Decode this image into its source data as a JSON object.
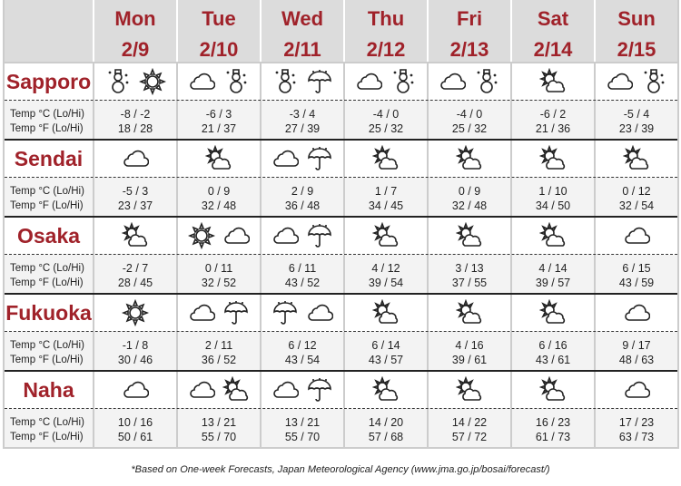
{
  "days": [
    {
      "name": "Mon",
      "date": "2/9"
    },
    {
      "name": "Tue",
      "date": "2/10"
    },
    {
      "name": "Wed",
      "date": "2/11"
    },
    {
      "name": "Thu",
      "date": "2/12"
    },
    {
      "name": "Fri",
      "date": "2/13"
    },
    {
      "name": "Sat",
      "date": "2/14"
    },
    {
      "name": "Sun",
      "date": "2/15"
    }
  ],
  "labels": {
    "c": "Temp °C (Lo/Hi)",
    "f": "Temp °F (Lo/Hi)"
  },
  "accent": "#a0222a",
  "cities": [
    {
      "name": "Sapporo",
      "icons": [
        [
          "snowman",
          "sun"
        ],
        [
          "cloud",
          "snowman"
        ],
        [
          "snowman",
          "umbrella"
        ],
        [
          "cloud",
          "snowman"
        ],
        [
          "cloud",
          "snowman"
        ],
        [
          "sun-cloud"
        ],
        [
          "cloud",
          "snowman"
        ]
      ],
      "c": [
        "-8 / -2",
        "-6 / 3",
        "-3 / 4",
        "-4 / 0",
        "-4 / 0",
        "-6 / 2",
        "-5 / 4"
      ],
      "f": [
        "18 / 28",
        "21 / 37",
        "27 / 39",
        "25 / 32",
        "25 / 32",
        "21 / 36",
        "23 / 39"
      ]
    },
    {
      "name": "Sendai",
      "icons": [
        [
          "cloud"
        ],
        [
          "sun-cloud"
        ],
        [
          "cloud",
          "umbrella"
        ],
        [
          "sun-cloud"
        ],
        [
          "sun-cloud"
        ],
        [
          "sun-cloud"
        ],
        [
          "sun-cloud"
        ]
      ],
      "c": [
        "-5 / 3",
        "0 / 9",
        "2 / 9",
        "1 / 7",
        "0 / 9",
        "1 / 10",
        "0 / 12"
      ],
      "f": [
        "23 / 37",
        "32 / 48",
        "36 / 48",
        "34 / 45",
        "32 / 48",
        "34 / 50",
        "32 / 54"
      ]
    },
    {
      "name": "Osaka",
      "icons": [
        [
          "sun-cloud"
        ],
        [
          "sun",
          "cloud"
        ],
        [
          "cloud",
          "umbrella"
        ],
        [
          "sun-cloud"
        ],
        [
          "sun-cloud"
        ],
        [
          "sun-cloud"
        ],
        [
          "cloud"
        ]
      ],
      "c": [
        "-2 / 7",
        "0 / 11",
        "6 / 11",
        "4 / 12",
        "3 / 13",
        "4 / 14",
        "6 / 15"
      ],
      "f": [
        "28 / 45",
        "32 / 52",
        "43 / 52",
        "39 / 54",
        "37 / 55",
        "39 / 57",
        "43 / 59"
      ]
    },
    {
      "name": "Fukuoka",
      "icons": [
        [
          "sun"
        ],
        [
          "cloud",
          "umbrella"
        ],
        [
          "umbrella",
          "cloud"
        ],
        [
          "sun-cloud"
        ],
        [
          "sun-cloud"
        ],
        [
          "sun-cloud"
        ],
        [
          "cloud"
        ]
      ],
      "c": [
        "-1 / 8",
        "2 / 11",
        "6 / 12",
        "6 / 14",
        "4 / 16",
        "6 / 16",
        "9 / 17"
      ],
      "f": [
        "30 / 46",
        "36 / 52",
        "43 / 54",
        "43 / 57",
        "39 / 61",
        "43 / 61",
        "48 / 63"
      ]
    },
    {
      "name": "Naha",
      "icons": [
        [
          "cloud"
        ],
        [
          "cloud",
          "sun-cloud"
        ],
        [
          "cloud",
          "umbrella"
        ],
        [
          "sun-cloud"
        ],
        [
          "sun-cloud"
        ],
        [
          "sun-cloud"
        ],
        [
          "cloud"
        ]
      ],
      "c": [
        "10 / 16",
        "13 / 21",
        "13 / 21",
        "14 / 20",
        "14 / 22",
        "16 / 23",
        "17 / 23"
      ],
      "f": [
        "50 / 61",
        "55 / 70",
        "55 / 70",
        "57 / 68",
        "57 / 72",
        "61 / 73",
        "63 / 73"
      ]
    }
  ],
  "footnote": "*Based on One-week Forecasts, Japan Meteorological Agency (www.jma.go.jp/bosai/forecast/)"
}
